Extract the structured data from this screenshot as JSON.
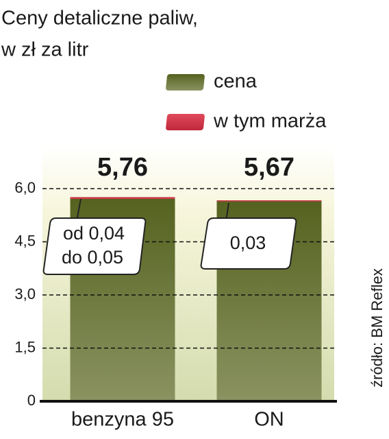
{
  "chart_data": {
    "type": "bar",
    "title": "Ceny detaliczne paliw,",
    "subtitle": "w zł za litr",
    "categories": [
      "benzyna 95",
      "ON"
    ],
    "series": [
      {
        "name": "cena",
        "color": "#5d6b2c",
        "values": [
          5.76,
          5.67
        ],
        "value_labels": [
          "5,76",
          "5,67"
        ]
      },
      {
        "name": "w tym marża",
        "color": "#d23a4c",
        "values": [
          0.05,
          0.03
        ]
      }
    ],
    "annotations": [
      "od 0,04",
      "do 0,05",
      "0,03"
    ],
    "ylim": [
      0,
      7.2
    ],
    "yticks": [
      0,
      {
        "value": 1.5,
        "label": "1,5"
      },
      {
        "value": 3.0,
        "label": "3,0"
      },
      {
        "value": 4.5,
        "label": "4,5"
      },
      {
        "value": 6.0,
        "label": "6,0"
      }
    ],
    "grid": true,
    "source": "źródło: BM Reflex"
  }
}
